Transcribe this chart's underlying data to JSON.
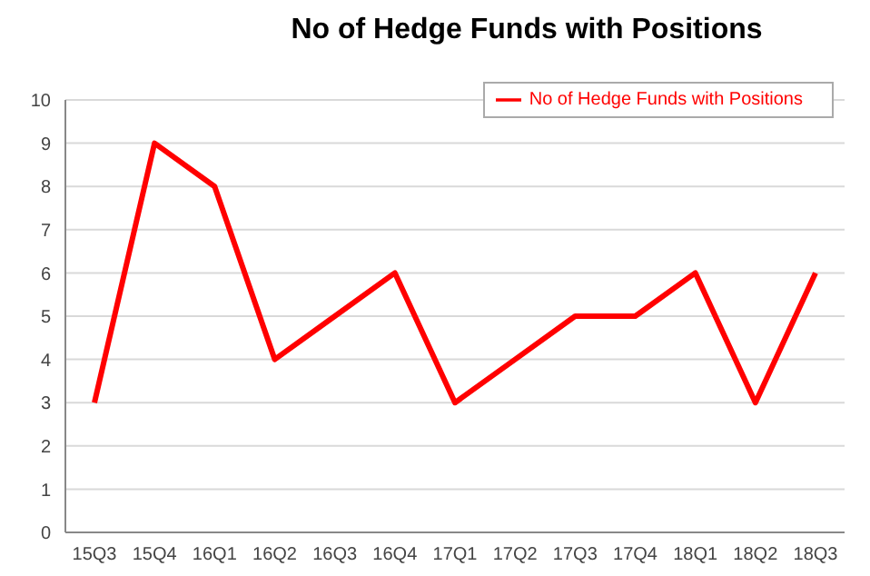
{
  "chart_data": {
    "type": "line",
    "title": "No of Hedge Funds with Positions",
    "categories": [
      "15Q3",
      "15Q4",
      "16Q1",
      "16Q2",
      "16Q3",
      "16Q4",
      "17Q1",
      "17Q2",
      "17Q3",
      "17Q4",
      "18Q1",
      "18Q2",
      "18Q3"
    ],
    "series": [
      {
        "name": "No of Hedge Funds with Positions",
        "color": "#ff0000",
        "values": [
          3,
          9,
          8,
          4,
          5,
          6,
          3,
          4,
          5,
          5,
          6,
          3,
          6
        ]
      }
    ],
    "ylim": [
      0,
      10
    ],
    "yticks": [
      0,
      1,
      2,
      3,
      4,
      5,
      6,
      7,
      8,
      9,
      10
    ],
    "grid": "y",
    "legend": "top right",
    "marker": "none",
    "line_style": "solid"
  }
}
